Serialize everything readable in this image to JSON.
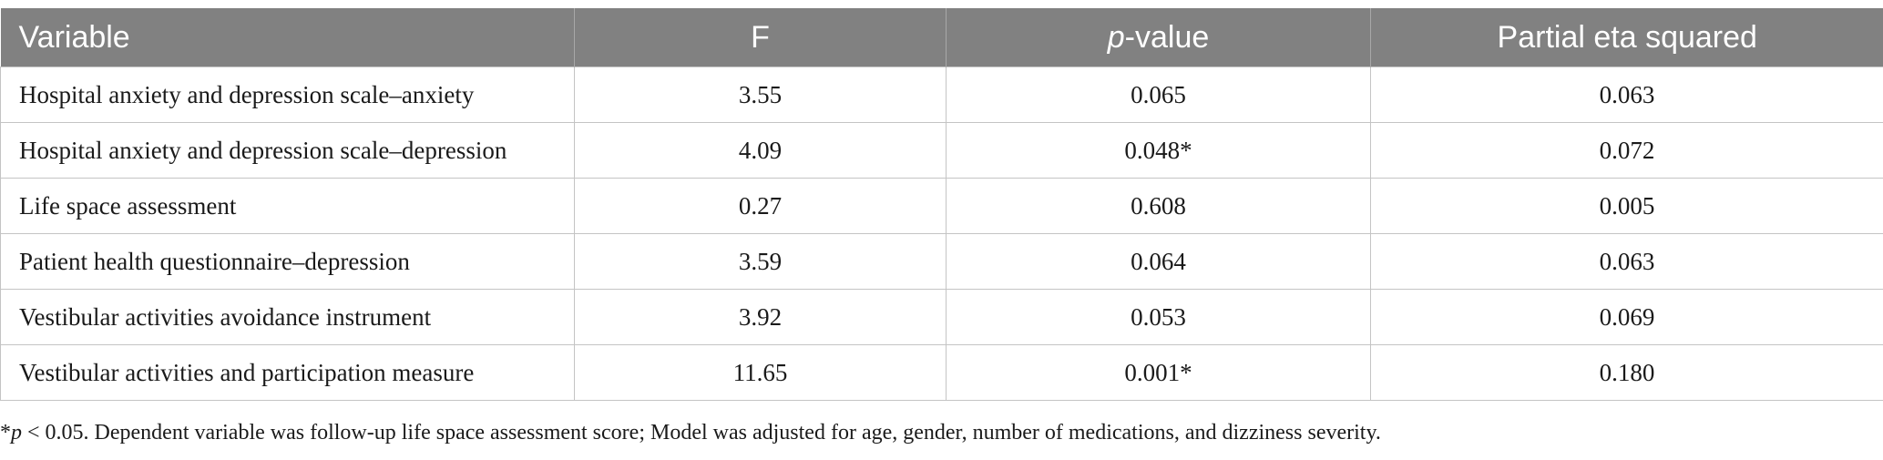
{
  "table": {
    "headers": [
      {
        "text": "Variable"
      },
      {
        "text": "F"
      },
      {
        "prefix_italic": "p",
        "rest": "-value"
      },
      {
        "text": "Partial eta squared"
      }
    ],
    "rows": [
      [
        "Hospital anxiety and depression scale–anxiety",
        "3.55",
        "0.065",
        "0.063"
      ],
      [
        "Hospital anxiety and depression scale–depression",
        "4.09",
        "0.048*",
        "0.072"
      ],
      [
        "Life space assessment",
        "0.27",
        "0.608",
        "0.005"
      ],
      [
        "Patient health questionnaire–depression",
        "3.59",
        "0.064",
        "0.063"
      ],
      [
        "Vestibular activities avoidance instrument",
        "3.92",
        "0.053",
        "0.069"
      ],
      [
        "Vestibular activities and participation measure",
        "11.65",
        "0.001*",
        "0.180"
      ]
    ]
  },
  "footnote": {
    "asterisk": "*",
    "italic_p": "p",
    "text": " < 0.05. Dependent variable was follow-up life space assessment score; Model was adjusted for age, gender, number of medications, and dizziness severity."
  }
}
